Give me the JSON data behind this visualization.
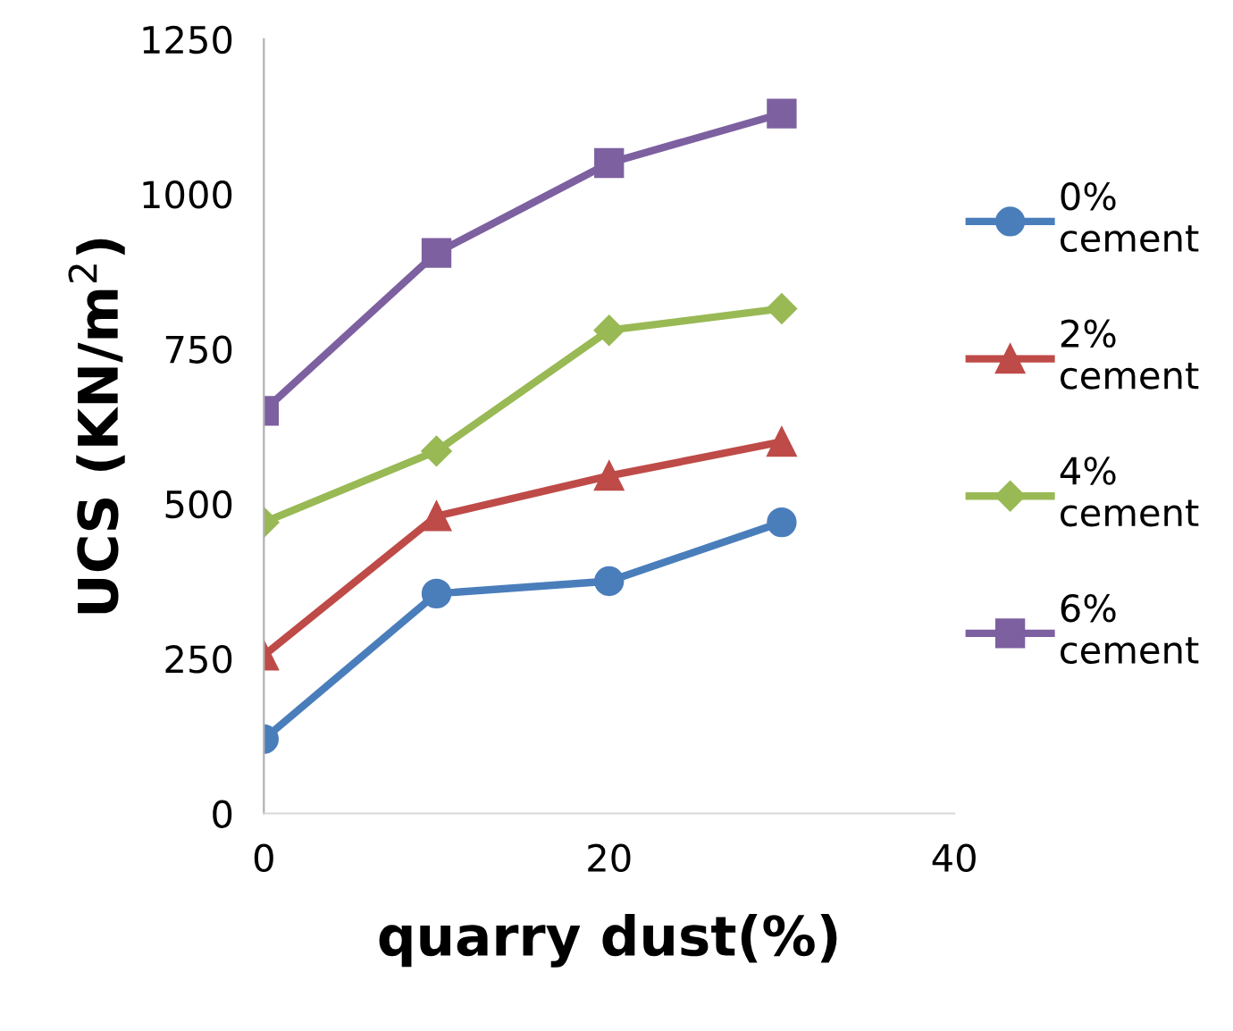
{
  "chart_data": {
    "type": "line",
    "xlabel": "quarry dust(%)",
    "ylabel": "UCS (KN/m$^{2}$)",
    "x": [
      0,
      10,
      20,
      30
    ],
    "xlim": [
      0,
      40
    ],
    "xticks": [
      0,
      20,
      40
    ],
    "ylim": [
      0,
      1250
    ],
    "yticks": [
      0,
      250,
      500,
      750,
      1000,
      1250
    ],
    "grid": false,
    "legend": "right",
    "series": [
      {
        "name": "0%\ncement",
        "color": "#4a7ebb",
        "marker": "circle",
        "values": [
          120,
          355,
          375,
          470
        ]
      },
      {
        "name": "2%\ncement",
        "color": "#be4b48",
        "marker": "triangle",
        "values": [
          255,
          480,
          545,
          600
        ]
      },
      {
        "name": "4%\ncement",
        "color": "#98b954",
        "marker": "diamond",
        "values": [
          470,
          585,
          780,
          815
        ]
      },
      {
        "name": "6%\ncement",
        "color": "#7d60a0",
        "marker": "square",
        "values": [
          650,
          905,
          1050,
          1130
        ]
      }
    ]
  }
}
